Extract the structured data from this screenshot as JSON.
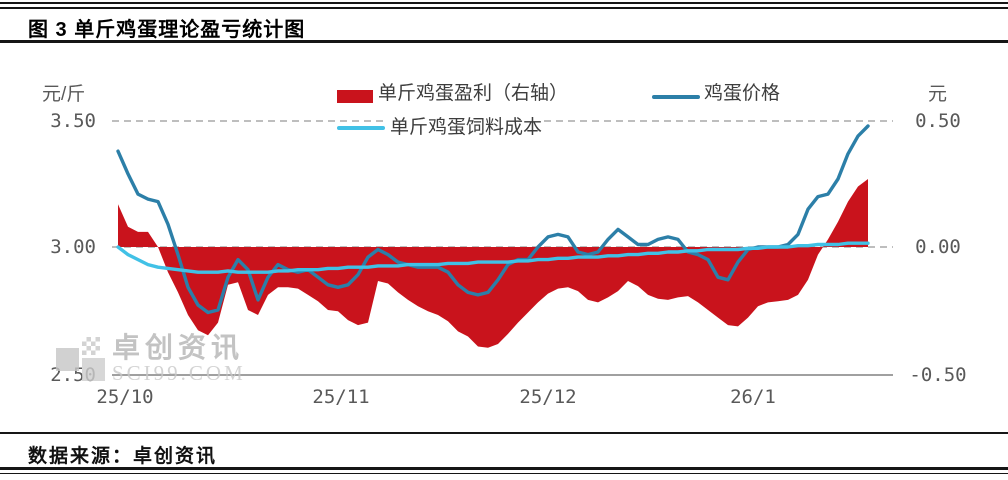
{
  "header": {
    "title": "图 3 单斤鸡蛋理论盈亏统计图"
  },
  "footer": {
    "source": "数据来源：卓创资讯"
  },
  "watermark": {
    "name": "卓创资讯",
    "url_text": "SCI99.COM"
  },
  "colors": {
    "profit_red": "#c9131c",
    "price_blue": "#2c7fa8",
    "cost_cyan": "#41c1e6",
    "grid_grey": "#a8a8a8",
    "axis_grey": "#808080",
    "label_grey": "#595959"
  },
  "chart_data": {
    "type": "combo",
    "title": "图 3 单斤鸡蛋理论盈亏统计图",
    "x_labels": [
      "25/10",
      "25/11",
      "25/12",
      "26/1"
    ],
    "x_note": "values sampled at equal intervals from 25/10 to mid 26/1",
    "grid": {
      "horizontal_dashed_at": [
        3.5,
        3.0
      ],
      "vertical": false
    },
    "legend_position": "top-center",
    "left_axis": {
      "unit": "元/斤",
      "tick_labels": [
        "3.50",
        "3.00",
        "2.50"
      ],
      "ticks": [
        3.5,
        3.0,
        2.5
      ],
      "range": [
        2.5,
        3.5
      ]
    },
    "right_axis": {
      "unit": "元",
      "tick_labels": [
        "0.50",
        "0.00",
        "-0.50"
      ],
      "ticks": [
        0.5,
        0.0,
        -0.5
      ],
      "range": [
        -0.5,
        0.5
      ]
    },
    "series": [
      {
        "name": "单斤鸡蛋盈利（右轴）",
        "type": "area",
        "axis": "right",
        "color": "#c9131c",
        "values": [
          0.17,
          0.08,
          0.06,
          0.06,
          0.0,
          -0.1,
          -0.18,
          -0.27,
          -0.33,
          -0.35,
          -0.3,
          -0.15,
          -0.14,
          -0.25,
          -0.27,
          -0.19,
          -0.16,
          -0.16,
          -0.165,
          -0.19,
          -0.215,
          -0.25,
          -0.255,
          -0.29,
          -0.31,
          -0.3,
          -0.135,
          -0.145,
          -0.18,
          -0.21,
          -0.235,
          -0.255,
          -0.27,
          -0.295,
          -0.335,
          -0.355,
          -0.395,
          -0.4,
          -0.385,
          -0.345,
          -0.3,
          -0.26,
          -0.22,
          -0.185,
          -0.165,
          -0.16,
          -0.175,
          -0.21,
          -0.22,
          -0.2,
          -0.175,
          -0.135,
          -0.155,
          -0.19,
          -0.205,
          -0.21,
          -0.2,
          -0.195,
          -0.22,
          -0.25,
          -0.28,
          -0.31,
          -0.315,
          -0.28,
          -0.235,
          -0.22,
          -0.215,
          -0.21,
          -0.19,
          -0.13,
          -0.03,
          0.03,
          0.1,
          0.18,
          0.24,
          0.27
        ]
      },
      {
        "name": "鸡蛋价格",
        "type": "line",
        "axis": "left",
        "color": "#2c7fa8",
        "values": [
          3.38,
          3.29,
          3.21,
          3.19,
          3.18,
          3.09,
          2.97,
          2.84,
          2.77,
          2.74,
          2.75,
          2.88,
          2.95,
          2.91,
          2.79,
          2.88,
          2.93,
          2.91,
          2.9,
          2.91,
          2.88,
          2.85,
          2.84,
          2.85,
          2.89,
          2.96,
          2.99,
          2.97,
          2.94,
          2.93,
          2.92,
          2.92,
          2.92,
          2.9,
          2.85,
          2.82,
          2.81,
          2.82,
          2.87,
          2.93,
          2.95,
          2.95,
          3.0,
          3.04,
          3.05,
          3.04,
          2.98,
          2.97,
          2.98,
          3.03,
          3.07,
          3.04,
          3.01,
          3.01,
          3.03,
          3.04,
          3.03,
          2.98,
          2.97,
          2.95,
          2.88,
          2.87,
          2.94,
          2.99,
          3.0,
          3.0,
          3.0,
          3.01,
          3.05,
          3.15,
          3.2,
          3.21,
          3.27,
          3.37,
          3.44,
          3.48
        ]
      },
      {
        "name": "单斤鸡蛋饲料成本",
        "type": "line",
        "axis": "left",
        "color": "#41c1e6",
        "values": [
          3.0,
          2.97,
          2.95,
          2.93,
          2.92,
          2.915,
          2.91,
          2.905,
          2.9,
          2.9,
          2.9,
          2.905,
          2.9,
          2.9,
          2.9,
          2.9,
          2.905,
          2.905,
          2.91,
          2.91,
          2.91,
          2.915,
          2.915,
          2.92,
          2.92,
          2.92,
          2.925,
          2.925,
          2.925,
          2.93,
          2.93,
          2.93,
          2.93,
          2.935,
          2.935,
          2.935,
          2.94,
          2.94,
          2.94,
          2.94,
          2.945,
          2.945,
          2.95,
          2.95,
          2.955,
          2.955,
          2.96,
          2.96,
          2.96,
          2.965,
          2.965,
          2.97,
          2.97,
          2.975,
          2.975,
          2.98,
          2.98,
          2.985,
          2.985,
          2.99,
          2.99,
          2.99,
          2.99,
          2.995,
          2.995,
          3.0,
          3.0,
          3.0,
          3.005,
          3.005,
          3.01,
          3.01,
          3.01,
          3.015,
          3.015,
          3.015
        ]
      }
    ]
  }
}
